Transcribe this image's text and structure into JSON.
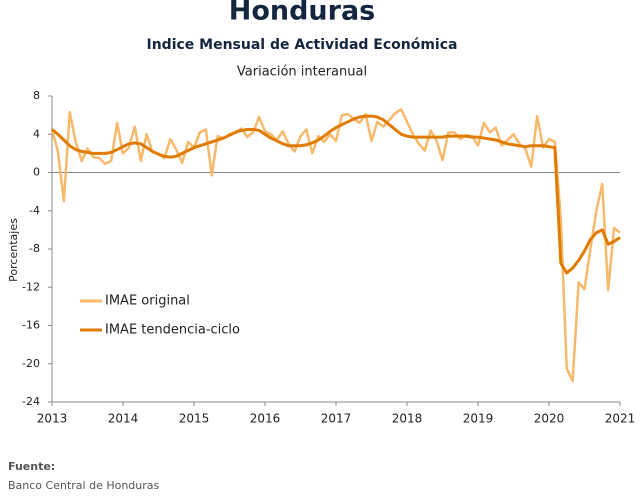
{
  "chart_data": {
    "type": "line",
    "title": "Honduras",
    "subtitle": "Indice Mensual de  Actividad Económica",
    "note": "Variación interanual",
    "ylabel": "Porcentajes",
    "source_label": "Fuente:",
    "source": "Banco Central de Honduras",
    "legend": "lower left",
    "grid": false,
    "xlim": [
      2013,
      2021
    ],
    "xticks": [
      2013,
      2014,
      2015,
      2016,
      2017,
      2018,
      2019,
      2020,
      2021
    ],
    "ylim": [
      -24,
      8
    ],
    "yticks": [
      -24,
      -20,
      -16,
      -12,
      -8,
      -4,
      0,
      4,
      8
    ],
    "x": [
      2013,
      2013.083,
      2013.167,
      2013.25,
      2013.333,
      2013.417,
      2013.5,
      2013.583,
      2013.667,
      2013.75,
      2013.833,
      2013.917,
      2014,
      2014.083,
      2014.167,
      2014.25,
      2014.333,
      2014.417,
      2014.5,
      2014.583,
      2014.667,
      2014.75,
      2014.833,
      2014.917,
      2015,
      2015.083,
      2015.167,
      2015.25,
      2015.333,
      2015.417,
      2015.5,
      2015.583,
      2015.667,
      2015.75,
      2015.833,
      2015.917,
      2016,
      2016.083,
      2016.167,
      2016.25,
      2016.333,
      2016.417,
      2016.5,
      2016.583,
      2016.667,
      2016.75,
      2016.833,
      2016.917,
      2017,
      2017.083,
      2017.167,
      2017.25,
      2017.333,
      2017.417,
      2017.5,
      2017.583,
      2017.667,
      2017.75,
      2017.833,
      2017.917,
      2018,
      2018.083,
      2018.167,
      2018.25,
      2018.333,
      2018.417,
      2018.5,
      2018.583,
      2018.667,
      2018.75,
      2018.833,
      2018.917,
      2019,
      2019.083,
      2019.167,
      2019.25,
      2019.333,
      2019.417,
      2019.5,
      2019.583,
      2019.667,
      2019.75,
      2019.833,
      2019.917,
      2020,
      2020.083,
      2020.167,
      2020.25,
      2020.333,
      2020.417,
      2020.5,
      2020.583,
      2020.667,
      2020.75,
      2020.833,
      2020.917,
      2021
    ],
    "series": [
      {
        "name": "IMAE original",
        "color": "#f7b96b",
        "values": [
          4.5,
          2.2,
          -3.0,
          6.3,
          3.2,
          1.2,
          2.5,
          1.6,
          1.5,
          0.9,
          1.2,
          5.2,
          2.0,
          2.6,
          4.8,
          1.2,
          4.0,
          2.1,
          2.0,
          1.5,
          3.5,
          2.4,
          1.0,
          3.2,
          2.6,
          4.2,
          4.5,
          -0.3,
          3.8,
          3.6,
          4.0,
          4.2,
          4.6,
          3.7,
          4.2,
          5.8,
          4.3,
          4.0,
          3.4,
          4.3,
          3.0,
          2.2,
          3.8,
          4.5,
          2.0,
          3.8,
          3.2,
          4.0,
          3.3,
          6.0,
          6.1,
          5.6,
          5.2,
          6.1,
          3.3,
          5.3,
          4.8,
          5.5,
          6.2,
          6.6,
          5.3,
          4.0,
          3.0,
          2.3,
          4.4,
          3.3,
          1.3,
          4.2,
          4.2,
          3.5,
          3.9,
          3.8,
          2.8,
          5.2,
          4.2,
          4.7,
          2.8,
          3.4,
          4.0,
          3.0,
          2.5,
          0.6,
          5.9,
          2.6,
          3.5,
          3.2,
          -5.0,
          -20.5,
          -21.8,
          -11.5,
          -12.2,
          -8.0,
          -4.0,
          -1.2,
          -12.3,
          -5.8,
          -6.3
        ]
      },
      {
        "name": "IMAE tendencia-ciclo",
        "color": "#e07b00",
        "values": [
          4.5,
          4.0,
          3.4,
          2.8,
          2.4,
          2.2,
          2.1,
          2.0,
          2.0,
          2.0,
          2.1,
          2.4,
          2.7,
          3.0,
          3.1,
          3.0,
          2.6,
          2.2,
          1.9,
          1.7,
          1.6,
          1.7,
          2.0,
          2.3,
          2.6,
          2.8,
          3.0,
          3.2,
          3.4,
          3.6,
          3.9,
          4.2,
          4.4,
          4.5,
          4.5,
          4.4,
          4.0,
          3.6,
          3.3,
          3.0,
          2.8,
          2.8,
          2.8,
          2.9,
          3.1,
          3.4,
          3.8,
          4.3,
          4.7,
          5.0,
          5.3,
          5.6,
          5.8,
          5.9,
          5.9,
          5.8,
          5.5,
          5.0,
          4.5,
          4.0,
          3.8,
          3.7,
          3.7,
          3.7,
          3.7,
          3.7,
          3.7,
          3.8,
          3.8,
          3.8,
          3.8,
          3.7,
          3.7,
          3.6,
          3.5,
          3.4,
          3.2,
          3.0,
          2.9,
          2.8,
          2.7,
          2.8,
          2.8,
          2.8,
          2.7,
          2.6,
          -9.5,
          -10.5,
          -10.0,
          -9.2,
          -8.2,
          -7.0,
          -6.3,
          -6.0,
          -7.5,
          -7.2,
          -6.8
        ]
      }
    ]
  }
}
